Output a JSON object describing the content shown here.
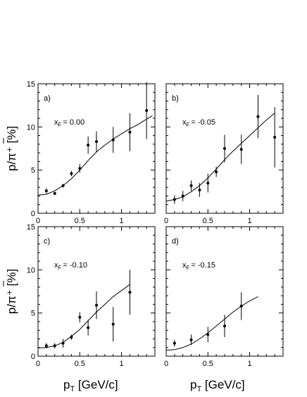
{
  "chart_data": [
    {
      "type": "scatter",
      "panel_label": "a)",
      "annotation": {
        "main": "x",
        "sub": "F",
        "value": "=  0.00"
      },
      "xlim": [
        0,
        1.4
      ],
      "ylim": [
        0,
        15
      ],
      "points": [
        {
          "x": 0.1,
          "y": 2.6,
          "err": 0.3
        },
        {
          "x": 0.2,
          "y": 2.3,
          "err": 0.2
        },
        {
          "x": 0.3,
          "y": 3.2,
          "err": 0.2
        },
        {
          "x": 0.4,
          "y": 4.6,
          "err": 0.3
        },
        {
          "x": 0.5,
          "y": 5.2,
          "err": 0.5
        },
        {
          "x": 0.6,
          "y": 7.9,
          "err": 1.0
        },
        {
          "x": 0.7,
          "y": 8.3,
          "err": 1.2
        },
        {
          "x": 0.9,
          "y": 8.5,
          "err": 1.5
        },
        {
          "x": 1.1,
          "y": 9.4,
          "err": 2.2
        },
        {
          "x": 1.3,
          "y": 11.9,
          "err": 3.3
        }
      ],
      "curve": {
        "x": [
          0.0,
          0.1,
          0.2,
          0.3,
          0.4,
          0.5,
          0.6,
          0.7,
          0.8,
          0.9,
          1.0,
          1.1,
          1.2,
          1.3,
          1.37
        ],
        "y": [
          2.1,
          2.2,
          2.6,
          3.2,
          4.0,
          5.0,
          6.1,
          7.1,
          7.9,
          8.6,
          9.2,
          9.8,
          10.3,
          10.9,
          11.3
        ]
      }
    },
    {
      "type": "scatter",
      "panel_label": "b)",
      "annotation": {
        "main": "x",
        "sub": "F",
        "value": "= -0.05"
      },
      "xlim": [
        0,
        1.4
      ],
      "ylim": [
        0,
        15
      ],
      "points": [
        {
          "x": 0.1,
          "y": 1.6,
          "err": 0.5
        },
        {
          "x": 0.2,
          "y": 2.0,
          "err": 0.6
        },
        {
          "x": 0.3,
          "y": 3.2,
          "err": 0.6
        },
        {
          "x": 0.4,
          "y": 2.7,
          "err": 0.8
        },
        {
          "x": 0.5,
          "y": 3.5,
          "err": 1.1
        },
        {
          "x": 0.6,
          "y": 4.8,
          "err": 0.6
        },
        {
          "x": 0.7,
          "y": 7.5,
          "err": 1.6
        },
        {
          "x": 0.9,
          "y": 7.4,
          "err": 1.7
        },
        {
          "x": 1.1,
          "y": 11.2,
          "err": 2.5
        },
        {
          "x": 1.3,
          "y": 8.8,
          "err": 3.5
        }
      ],
      "curve": {
        "x": [
          0.0,
          0.1,
          0.2,
          0.3,
          0.4,
          0.5,
          0.6,
          0.7,
          0.8,
          0.9,
          1.0,
          1.1,
          1.2,
          1.3
        ],
        "y": [
          1.4,
          1.6,
          1.9,
          2.5,
          3.2,
          4.1,
          5.1,
          6.2,
          7.2,
          8.1,
          9.0,
          9.9,
          10.8,
          11.6
        ]
      }
    },
    {
      "type": "scatter",
      "panel_label": "c)",
      "annotation": {
        "main": "x",
        "sub": "F",
        "value": "= -0.10"
      },
      "xlim": [
        0,
        1.4
      ],
      "ylim": [
        0,
        15
      ],
      "points": [
        {
          "x": 0.1,
          "y": 1.2,
          "err": 0.3
        },
        {
          "x": 0.2,
          "y": 1.2,
          "err": 0.3
        },
        {
          "x": 0.3,
          "y": 1.5,
          "err": 0.5
        },
        {
          "x": 0.4,
          "y": 2.2,
          "err": 0.3
        },
        {
          "x": 0.5,
          "y": 4.5,
          "err": 0.6
        },
        {
          "x": 0.6,
          "y": 3.3,
          "err": 0.9
        },
        {
          "x": 0.7,
          "y": 5.9,
          "err": 1.6
        },
        {
          "x": 0.9,
          "y": 3.7,
          "err": 2.0
        },
        {
          "x": 1.1,
          "y": 7.4,
          "err": 2.6
        }
      ],
      "curve": {
        "x": [
          0.0,
          0.1,
          0.2,
          0.3,
          0.4,
          0.5,
          0.6,
          0.7,
          0.8,
          0.9,
          1.0,
          1.1
        ],
        "y": [
          0.95,
          1.0,
          1.2,
          1.6,
          2.3,
          3.1,
          4.1,
          5.1,
          6.0,
          6.9,
          7.6,
          8.3
        ]
      }
    },
    {
      "type": "scatter",
      "panel_label": "d)",
      "annotation": {
        "main": "x",
        "sub": "F",
        "value": "= -0.15"
      },
      "xlim": [
        0,
        1.4
      ],
      "ylim": [
        0,
        15
      ],
      "points": [
        {
          "x": 0.1,
          "y": 1.5,
          "err": 0.4
        },
        {
          "x": 0.3,
          "y": 1.9,
          "err": 0.6
        },
        {
          "x": 0.5,
          "y": 2.5,
          "err": 0.9
        },
        {
          "x": 0.7,
          "y": 3.5,
          "err": 1.3
        },
        {
          "x": 0.9,
          "y": 5.8,
          "err": 1.6
        }
      ],
      "curve": {
        "x": [
          0.0,
          0.1,
          0.2,
          0.3,
          0.4,
          0.5,
          0.6,
          0.7,
          0.8,
          0.9,
          1.0,
          1.1
        ],
        "y": [
          0.7,
          0.75,
          1.0,
          1.4,
          2.0,
          2.7,
          3.5,
          4.3,
          5.1,
          5.8,
          6.4,
          6.9
        ]
      }
    }
  ],
  "axes": {
    "x_ticks": [
      "0",
      "0.5",
      "1"
    ],
    "y_ticks": [
      "0",
      "5",
      "10",
      "15"
    ],
    "ylabel": "p/π⁺ [%]",
    "xlabel_main": "p",
    "xlabel_sub": "T",
    "xlabel_unit": " [GeV/c]"
  }
}
